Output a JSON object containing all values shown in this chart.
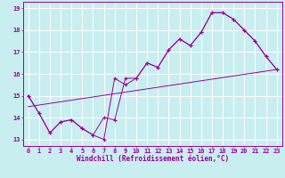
{
  "xlabel": "Windchill (Refroidissement éolien,°C)",
  "background_color": "#c8eef0",
  "line_color": "#990099",
  "xlim": [
    -0.5,
    23.5
  ],
  "ylim": [
    12.7,
    19.3
  ],
  "xticks": [
    0,
    1,
    2,
    3,
    4,
    5,
    6,
    7,
    8,
    9,
    10,
    11,
    12,
    13,
    14,
    15,
    16,
    17,
    18,
    19,
    20,
    21,
    22,
    23
  ],
  "yticks": [
    13,
    14,
    15,
    16,
    17,
    18,
    19
  ],
  "grid_color": "#b0dce0",
  "series1_y": [
    15.0,
    14.2,
    13.3,
    13.8,
    13.9,
    13.5,
    13.2,
    13.0,
    15.8,
    15.5,
    15.8,
    16.5,
    16.3,
    17.1,
    17.6,
    17.3,
    17.9,
    18.8,
    18.8,
    18.5,
    18.0,
    17.5,
    16.8,
    16.2
  ],
  "series2_y": [
    15.0,
    14.2,
    13.3,
    13.8,
    13.9,
    13.5,
    13.2,
    14.0,
    13.9,
    15.8,
    15.8,
    16.5,
    16.3,
    17.1,
    17.6,
    17.3,
    17.9,
    18.8,
    18.8,
    18.5,
    18.0,
    17.5,
    16.8,
    16.2
  ],
  "trend_y_start": 14.5,
  "trend_y_end": 16.2,
  "xlabel_fontsize": 5.5,
  "tick_fontsize": 5.0
}
